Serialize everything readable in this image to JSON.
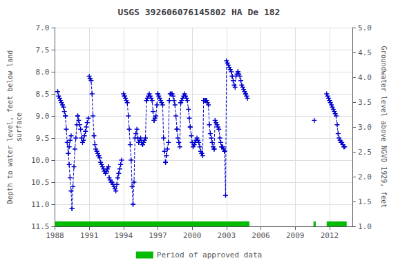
{
  "chart_data": {
    "type": "line",
    "title": "USGS 392606076145802 HA De 182",
    "ylabel": "Depth to water level, feet below land\nsurface",
    "y2label": "Groundwater level above NGVD 1929, feet",
    "xlim": [
      1988,
      2014
    ],
    "xticks": [
      1988,
      1991,
      1994,
      1997,
      2000,
      2003,
      2006,
      2009,
      2012
    ],
    "ylim": [
      11.5,
      7.0
    ],
    "yticks": [
      {
        "value": 7,
        "label": "7.0"
      },
      7.5,
      {
        "value": 8,
        "label": "8.0"
      },
      8.5,
      {
        "value": 9,
        "label": "9.0"
      },
      9.5,
      {
        "value": 10,
        "label": "10.0"
      },
      10.5,
      {
        "value": 11,
        "label": "11.0"
      },
      11.5
    ],
    "y2lim": [
      1.0,
      5.0
    ],
    "y2ticks": [
      {
        "value": 1,
        "label": "1.0"
      },
      1.5,
      {
        "value": 2,
        "label": "2.0"
      },
      2.5,
      {
        "value": 3,
        "label": "3.0"
      },
      3.5,
      {
        "value": 4,
        "label": "4.0"
      },
      4.5,
      {
        "value": 5,
        "label": "5.0"
      }
    ],
    "grid": true,
    "color": "#0000cc",
    "marker": "plus",
    "line_style": "dashed",
    "x": [
      1988.25,
      1988.33,
      1988.42,
      1988.5,
      1988.58,
      1988.67,
      1988.75,
      1988.83,
      1988.92,
      null,
      1988.92,
      1989.0,
      1989.08,
      1989.17,
      1989.25,
      1989.33,
      1989.42,
      1989.5,
      null,
      1989.5,
      1989.58,
      1989.67,
      1989.75,
      1989.83,
      1989.92,
      1990.0,
      null,
      1989.17,
      1989.25,
      1989.33,
      1989.42,
      null,
      1990.0,
      1990.08,
      1990.17,
      1990.25,
      1990.33,
      1990.42,
      1990.5,
      1990.58,
      1990.67,
      null,
      1990.67,
      1990.75,
      1990.83,
      1990.92,
      null,
      1991.0,
      1991.08,
      null,
      1991.08,
      1991.17,
      1991.25,
      1991.33,
      1991.42,
      1991.5,
      1991.58,
      1991.67,
      1991.75,
      1991.83,
      null,
      1991.83,
      1991.92,
      1992.0,
      1992.08,
      1992.17,
      1992.25,
      1992.33,
      1992.42,
      1992.5,
      1992.58,
      1992.67,
      null,
      1992.67,
      1992.75,
      1992.83,
      1992.92,
      1993.0,
      1993.08,
      1993.17,
      1993.25,
      1993.33,
      1993.42,
      1993.5,
      null,
      1993.5,
      1993.58,
      1993.67,
      1993.75,
      1993.83,
      null,
      1994.0,
      1994.08,
      null,
      1994.08,
      1994.17,
      1994.25,
      1994.33,
      1994.42,
      1994.5,
      1994.58,
      1994.67,
      1994.75,
      1994.83,
      null,
      1994.83,
      1994.92,
      1995.0,
      1995.08,
      1995.17,
      1995.25,
      1995.33,
      null,
      1995.33,
      1995.42,
      1995.5,
      1995.58,
      1995.67,
      null,
      1995.67,
      1995.75,
      1995.83,
      1995.92,
      1996.0,
      null,
      1996.0,
      1996.08,
      1996.17,
      1996.25,
      1996.33,
      1996.42,
      1996.5,
      1996.58,
      1996.67,
      null,
      1996.67,
      1996.75,
      1996.83,
      1996.92,
      1997.0,
      null,
      1997.0,
      1997.08,
      1997.17,
      1997.25,
      1997.33,
      1997.42,
      1997.5,
      1997.58,
      1997.67,
      null,
      1997.67,
      1997.75,
      1997.83,
      1997.92,
      1998.0,
      null,
      1998.0,
      1998.08,
      1998.17,
      1998.25,
      1998.33,
      1998.42,
      1998.5,
      1998.58,
      1998.67,
      null,
      1998.67,
      1998.75,
      1998.83,
      1998.92,
      1999.0,
      null,
      1999.0,
      1999.08,
      1999.17,
      1999.25,
      1999.33,
      1999.42,
      1999.5,
      1999.58,
      1999.67,
      1999.75,
      1999.83,
      null,
      1999.83,
      1999.92,
      2000.0,
      2000.08,
      2000.17,
      null,
      2000.17,
      2000.25,
      2000.33,
      2000.42,
      2000.5,
      2000.58,
      2000.67,
      2000.75,
      2000.83,
      null,
      2000.83,
      2000.92,
      2001.0,
      2001.08,
      2001.17,
      2001.25,
      null,
      2001.25,
      2001.33,
      2001.42,
      2001.5,
      2001.58,
      2001.67,
      2001.75,
      2001.83,
      2001.92,
      null,
      2001.92,
      2002.0,
      2002.08,
      2002.17,
      2002.25,
      2002.33,
      2002.42,
      2002.5,
      2002.58,
      null,
      2002.58,
      2002.67,
      2002.75,
      2002.83,
      null,
      2002.83,
      2002.92,
      2003.0,
      2003.08,
      2003.17,
      2003.25,
      2003.33,
      2003.42,
      2003.5,
      null,
      2003.5,
      2003.58,
      2003.67,
      2003.75,
      2003.83,
      2003.92,
      2004.0,
      null,
      2004.0,
      2004.08,
      2004.17,
      2004.25,
      2004.33,
      2004.42,
      2004.5,
      2004.58,
      2004.67,
      null,
      2004.67,
      2004.75,
      2004.83,
      null,
      2010.67,
      null,
      2011.75,
      2011.83,
      2011.92,
      2012.0,
      null,
      2012.0,
      2012.08,
      2012.17,
      2012.25,
      2012.33,
      2012.42,
      2012.5,
      2012.58,
      2012.67,
      2012.75,
      2012.83,
      2012.92,
      2013.0,
      2013.08,
      2013.17,
      2013.25,
      2013.33
    ],
    "values": [
      8.45,
      8.55,
      8.6,
      8.65,
      8.7,
      8.75,
      8.8,
      8.9,
      9.0,
      null,
      9.0,
      9.3,
      9.6,
      9.85,
      10.1,
      10.4,
      10.7,
      11.1,
      null,
      11.1,
      10.6,
      10.15,
      9.75,
      9.5,
      9.2,
      9.0,
      null,
      9.85,
      9.7,
      9.55,
      9.45,
      null,
      9.0,
      9.1,
      9.2,
      9.3,
      9.5,
      9.6,
      9.55,
      9.45,
      9.35,
      null,
      9.35,
      9.25,
      9.15,
      9.05,
      null,
      8.1,
      8.15,
      null,
      8.15,
      8.2,
      8.5,
      9.0,
      9.45,
      9.65,
      9.75,
      9.8,
      9.85,
      9.9,
      null,
      9.9,
      9.95,
      10.05,
      10.1,
      10.15,
      10.2,
      10.25,
      10.3,
      10.25,
      10.2,
      10.15,
      null,
      10.15,
      10.4,
      10.45,
      10.5,
      10.5,
      10.55,
      10.6,
      10.65,
      10.7,
      10.55,
      10.4,
      null,
      10.4,
      10.3,
      10.2,
      10.1,
      10.0,
      null,
      8.5,
      8.55,
      null,
      8.55,
      8.6,
      8.65,
      8.7,
      9.0,
      9.3,
      9.65,
      10.0,
      10.6,
      11.0,
      null,
      11.0,
      10.5,
      9.5,
      9.4,
      9.3,
      9.5,
      9.6,
      null,
      9.6,
      9.55,
      9.5,
      9.6,
      9.65,
      null,
      9.65,
      9.6,
      9.55,
      9.5,
      8.65,
      null,
      8.65,
      8.6,
      8.55,
      8.5,
      8.55,
      8.6,
      8.65,
      8.9,
      9.1,
      null,
      9.1,
      9.05,
      9.0,
      8.75,
      8.5,
      null,
      8.5,
      8.55,
      8.6,
      8.65,
      8.7,
      8.75,
      9.5,
      9.8,
      10.05,
      null,
      10.05,
      9.9,
      9.75,
      9.6,
      8.65,
      null,
      8.65,
      8.5,
      8.5,
      8.5,
      8.55,
      8.65,
      8.75,
      9.0,
      9.3,
      null,
      9.3,
      9.5,
      9.6,
      9.7,
      8.7,
      null,
      8.7,
      8.65,
      8.6,
      8.55,
      8.5,
      8.55,
      8.6,
      8.65,
      8.85,
      9.05,
      9.25,
      null,
      9.25,
      9.45,
      9.6,
      9.7,
      9.65,
      null,
      9.65,
      9.6,
      9.55,
      9.5,
      9.55,
      9.6,
      9.7,
      9.8,
      9.85,
      null,
      9.85,
      9.9,
      8.65,
      8.65,
      8.65,
      8.65,
      null,
      8.65,
      8.7,
      8.75,
      9.2,
      9.4,
      9.5,
      9.6,
      9.7,
      9.75,
      null,
      9.75,
      9.1,
      9.15,
      9.2,
      9.25,
      9.3,
      9.5,
      9.6,
      9.7,
      null,
      9.7,
      9.7,
      9.75,
      9.8,
      null,
      9.8,
      10.8,
      7.75,
      7.8,
      7.85,
      7.9,
      7.95,
      8.0,
      8.1,
      null,
      8.1,
      8.2,
      8.3,
      8.35,
      8.1,
      8.05,
      8.0,
      null,
      8.0,
      8.05,
      8.1,
      8.2,
      8.3,
      8.35,
      8.4,
      8.45,
      8.5,
      null,
      8.5,
      8.55,
      8.6,
      null,
      9.1,
      null,
      8.5,
      8.55,
      8.6,
      8.65,
      null,
      8.65,
      8.7,
      8.75,
      8.8,
      8.85,
      8.9,
      8.95,
      9.0,
      9.2,
      9.4,
      9.5,
      9.55,
      9.6,
      9.6,
      9.65,
      9.7,
      9.7
    ],
    "spans": [
      {
        "name": "Period of approved data",
        "color": "#00bb00",
        "ranges": [
          [
            1988.0,
            2005.0
          ],
          [
            2010.6,
            2010.8
          ],
          [
            2011.75,
            2013.5
          ]
        ]
      }
    ]
  }
}
